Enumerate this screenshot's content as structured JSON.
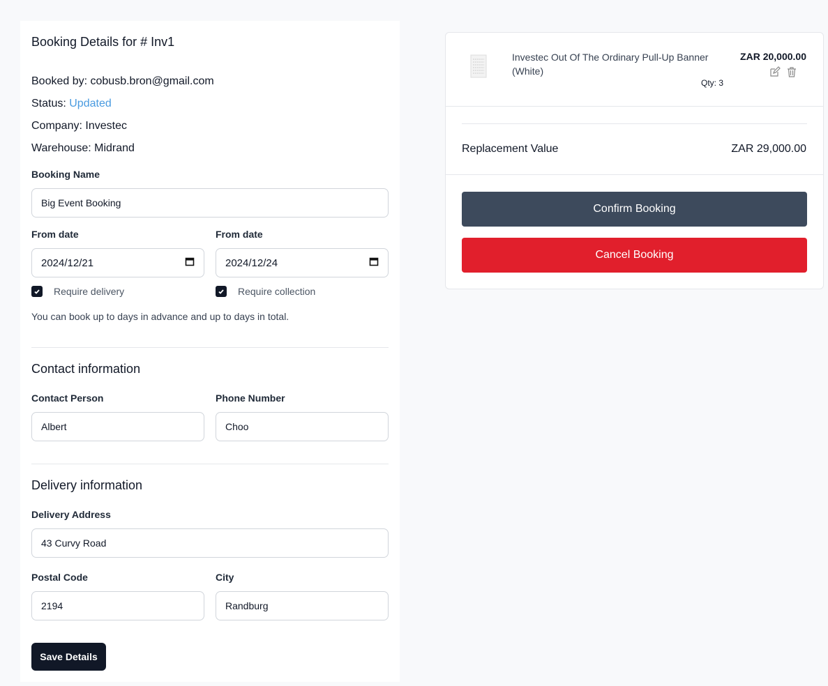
{
  "booking": {
    "title": "Booking Details for # Inv1",
    "booked_by_label": "Booked by: ",
    "booked_by": "cobusb.bron@gmail.com",
    "status_label": "Status: ",
    "status": "Updated",
    "company_label": "Company: ",
    "company": "Investec",
    "warehouse_label": "Warehouse: ",
    "warehouse": "Midrand",
    "booking_name_label": "Booking Name",
    "booking_name": "Big Event Booking",
    "from_date_label": "From date",
    "from_date": "2024/12/21",
    "to_date_label": "From date",
    "to_date": "2024/12/24",
    "require_delivery": "Require delivery",
    "require_delivery_checked": true,
    "require_collection": "Require collection",
    "require_collection_checked": true,
    "help_text": "You can book up to days in advance and up to days in total."
  },
  "contact": {
    "heading": "Contact information",
    "person_label": "Contact Person",
    "person": "Albert",
    "phone_label": "Phone Number",
    "phone": "Choo"
  },
  "delivery": {
    "heading": "Delivery information",
    "address_label": "Delivery Address",
    "address": "43 Curvy Road",
    "postal_label": "Postal Code",
    "postal": "2194",
    "city_label": "City",
    "city": "Randburg"
  },
  "save_label": "Save Details",
  "cart": {
    "item": {
      "name": "Investec Out Of The Ordinary Pull-Up Banner (White)",
      "price": "ZAR 20,000.00",
      "qty": "Qty: 3",
      "icons": [
        "edit-icon",
        "trash-icon"
      ]
    },
    "replacement_label": "Replacement Value",
    "replacement_value": "ZAR 29,000.00",
    "confirm_label": "Confirm Booking",
    "cancel_label": "Cancel Booking"
  },
  "colors": {
    "confirm": "#3d4a5c",
    "cancel": "#e11f2c",
    "status": "#4a9be0"
  }
}
